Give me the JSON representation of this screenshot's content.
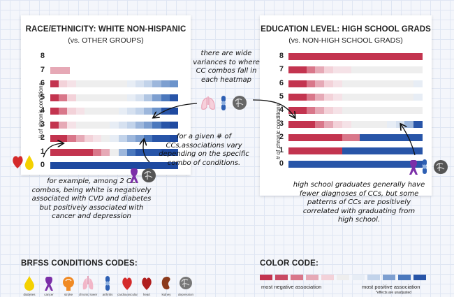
{
  "left_panel": {
    "title": "RACE/ETHNICITY: WHITE NON-HISPANIC",
    "subtitle": "(vs. OTHER GROUPS)",
    "y_axis_label": "# of chronic conditions",
    "y_ticks": [
      "8",
      "7",
      "6",
      "5",
      "4",
      "3",
      "2",
      "1",
      "0"
    ],
    "heatmap_rows": [
      {
        "count": "8",
        "cells": []
      },
      {
        "count": "7",
        "cells": [
          "#e6a9b6"
        ]
      },
      {
        "count": "6",
        "cells": [
          "#c3344f",
          "#f3d2d9",
          "#f5e2e7",
          "#eeeeee",
          "#eeeeee",
          "#eeeeee",
          "#eeeeee",
          "#eeeeee",
          "#eeeeee",
          "#e7edf5",
          "#d6e1f0",
          "#c2d3ea",
          "#9db7dc",
          "#7d9fd0",
          "#6b93cb"
        ]
      },
      {
        "count": "5",
        "cells": [
          "#c3344f",
          "#d9778a",
          "#f3d2d9",
          "#eeeeee",
          "#eeeeee",
          "#eeeeee",
          "#eeeeee",
          "#eeeeee",
          "#eeeeee",
          "#e7edf5",
          "#d6e1f0",
          "#b1c6e3",
          "#7d9fd0",
          "#4b78bd",
          "#2855a8"
        ]
      },
      {
        "count": "4",
        "cells": [
          "#c3344f",
          "#d9778a",
          "#f3d2d9",
          "#f5e2e7",
          "#eeeeee",
          "#eeeeee",
          "#eeeeee",
          "#eeeeee",
          "#e7edf5",
          "#d6e1f0",
          "#c2d3ea",
          "#9db7dc",
          "#6b93cb",
          "#2855a8",
          "#1f4aa0"
        ]
      },
      {
        "count": "3",
        "cells": [
          "#c3344f",
          "#e6a9b6",
          "#f5e2e7",
          "#eeeeee",
          "#eeeeee",
          "#eeeeee",
          "#eeeeee",
          "#e7edf5",
          "#d6e1f0",
          "#c2d3ea",
          "#9db7dc",
          "#7d9fd0",
          "#4b78bd",
          "#2855a8",
          "#1f4aa0"
        ]
      },
      {
        "count": "2",
        "cells": [
          "#c3344f",
          "#c3344f",
          "#d9778a",
          "#e6a9b6",
          "#f3d2d9",
          "#f5e2e7",
          "#eeeeee",
          "#e7edf5",
          "#c2d3ea",
          "#9db7dc",
          "#7d9fd0",
          "#4b78bd",
          "#2855a8",
          "#2855a8",
          "#1f4aa0"
        ]
      },
      {
        "count": "1",
        "cells": [
          "#c3344f",
          "#c3344f",
          "#c3344f",
          "#c3344f",
          "#c3344f",
          "#d9778a",
          "#e6a9b6",
          "#eeeeee",
          "#9db7dc",
          "#4b78bd",
          "#2855a8",
          "#2855a8",
          "#2855a8",
          "#1f4aa0",
          "#1f4aa0"
        ]
      },
      {
        "count": "0",
        "cells": [
          "#1f4aa0"
        ]
      }
    ]
  },
  "right_panel": {
    "title": "EDUCATION LEVEL: HIGH SCHOOL GRADS",
    "subtitle": "(vs. NON-HIGH SCHOOL GRADS)",
    "y_axis_label": "# of chronic conditions",
    "y_ticks": [
      "8",
      "7",
      "6",
      "5",
      "4",
      "3",
      "2",
      "1",
      "0"
    ],
    "heatmap_rows": [
      {
        "count": "8",
        "cells": [
          "#c3344f"
        ]
      },
      {
        "count": "7",
        "cells": [
          "#c3344f",
          "#c3344f",
          "#d9778a",
          "#e6a9b6",
          "#f3d2d9",
          "#f5e2e7",
          "#f5e2e7",
          "#eeeeee",
          "#eeeeee",
          "#eeeeee",
          "#eeeeee",
          "#eeeeee",
          "#eeeeee",
          "#eeeeee",
          "#eeeeee"
        ]
      },
      {
        "count": "6",
        "cells": [
          "#c3344f",
          "#c3344f",
          "#d9778a",
          "#e6a9b6",
          "#f3d2d9",
          "#f5e2e7",
          "#eeeeee",
          "#eeeeee",
          "#eeeeee",
          "#eeeeee",
          "#eeeeee",
          "#eeeeee",
          "#eeeeee",
          "#eeeeee",
          "#e7edf5"
        ]
      },
      {
        "count": "5",
        "cells": [
          "#c3344f",
          "#c3344f",
          "#d9778a",
          "#e6a9b6",
          "#f3d2d9",
          "#f5e2e7",
          "#eeeeee",
          "#eeeeee",
          "#eeeeee",
          "#eeeeee",
          "#eeeeee",
          "#eeeeee",
          "#eeeeee",
          "#eeeeee",
          "#e7edf5"
        ]
      },
      {
        "count": "4",
        "cells": [
          "#c3344f",
          "#c3344f",
          "#d9778a",
          "#e6a9b6",
          "#f3d2d9",
          "#f5e2e7",
          "#eeeeee",
          "#eeeeee",
          "#eeeeee",
          "#eeeeee",
          "#eeeeee",
          "#eeeeee",
          "#eeeeee",
          "#eeeeee",
          "#eeeeee"
        ]
      },
      {
        "count": "3",
        "cells": [
          "#c3344f",
          "#c3344f",
          "#c3344f",
          "#d9778a",
          "#e6a9b6",
          "#f3d2d9",
          "#f5e2e7",
          "#eeeeee",
          "#eeeeee",
          "#eeeeee",
          "#eeeeee",
          "#e7edf5",
          "#d6e1f0",
          "#9db7dc",
          "#2855a8"
        ]
      },
      {
        "count": "2",
        "cells": [
          "#c3344f",
          "#c3344f",
          "#c3344f",
          "#c3344f",
          "#c3344f",
          "#c3344f",
          "#d9778a",
          "#d9778a",
          "#2855a8",
          "#2855a8",
          "#2855a8",
          "#2855a8",
          "#2855a8",
          "#2855a8",
          "#2855a8"
        ]
      },
      {
        "count": "1",
        "cells": [
          "#c3344f",
          "#c3344f",
          "#c3344f",
          "#c3344f",
          "#c3344f",
          "#c3344f",
          "#2855a8",
          "#2855a8",
          "#2855a8",
          "#2855a8",
          "#2855a8",
          "#2855a8",
          "#2855a8",
          "#2855a8",
          "#2855a8"
        ]
      },
      {
        "count": "0",
        "cells": [
          "#2855a8"
        ]
      }
    ]
  },
  "annotations": {
    "center_note": [
      "there are wide",
      "variances to where",
      "CC combos fall in",
      "each heatmap"
    ],
    "middle_note": [
      "for a given # of",
      "CCs,associations vary",
      "depending on the specific",
      "combo of conditions."
    ],
    "left_note": [
      "for example, among 2 CC",
      "combos, being white is negatively",
      "associated with CVD and diabetes",
      "but positively associated with",
      "cancer and depression"
    ],
    "right_note": [
      "high school graduates generally have",
      "fewer diagnoses of CCs, but some",
      "patterns of CCs are positively",
      "correlated with graduating from",
      "high school."
    ]
  },
  "conditions_legend": {
    "title": "BRFSS CONDITIONS CODES:",
    "items": [
      {
        "icon": "drop-icon",
        "color": "#f4d100",
        "label": "diabetes"
      },
      {
        "icon": "ribbon-icon",
        "color": "#7b2fa8",
        "label": "cancer"
      },
      {
        "icon": "head-icon",
        "color": "#f08a24",
        "label": "stroke"
      },
      {
        "icon": "lungs-icon",
        "color": "#f2b6c8",
        "label": "chronic lower"
      },
      {
        "icon": "joint-icon",
        "color": "#2d5fb3",
        "label": "arthritis"
      },
      {
        "icon": "heart-icon",
        "color": "#d42a2a",
        "label": "cardiovascular"
      },
      {
        "icon": "heart-icon",
        "color": "#b01e1e",
        "label": "heart"
      },
      {
        "icon": "kidney-icon",
        "color": "#8b3a1c",
        "label": "kidney"
      },
      {
        "icon": "brain-icon",
        "color": "#777777",
        "label": "depression"
      }
    ]
  },
  "color_code": {
    "title": "COLOR CODE:",
    "swatches": [
      "#c3344f",
      "#c94a63",
      "#d9778a",
      "#e6a9b6",
      "#f3d2d9",
      "#eeeeee",
      "#e7edf5",
      "#c2d3ea",
      "#7d9fd0",
      "#4b78bd",
      "#2855a8"
    ],
    "min_label": "most negative association",
    "max_label": "most positive association",
    "note": "*effects are unadjusted"
  }
}
